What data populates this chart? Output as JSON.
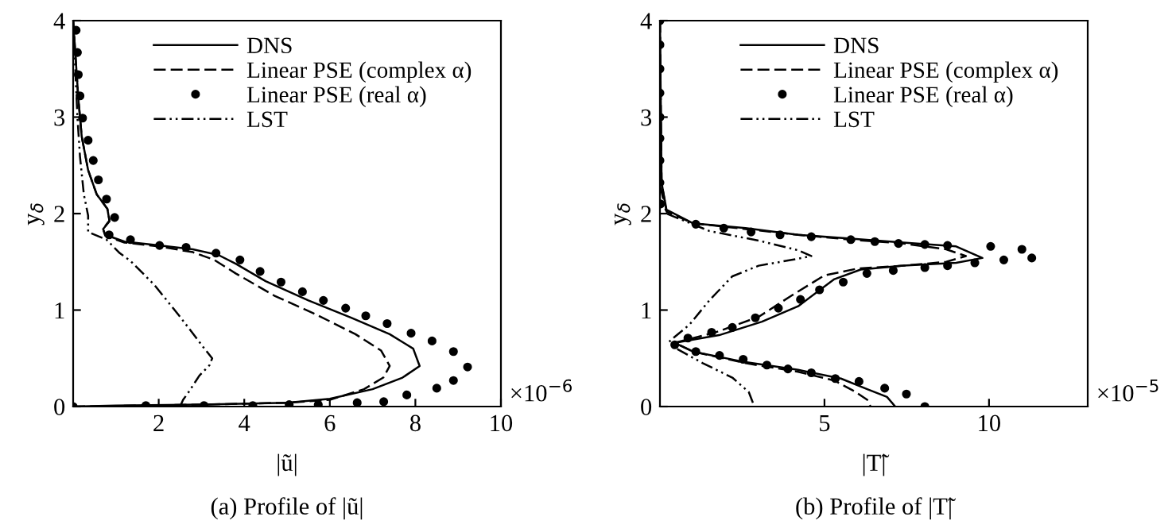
{
  "chart_data": [
    {
      "type": "line",
      "xlabel": "|ũ|",
      "ylabel": "y$_{δ}$",
      "xlim": [
        0,
        10
      ],
      "ylim": [
        0,
        4
      ],
      "xticks": [
        2,
        4,
        6,
        8,
        10
      ],
      "yticks": [
        0,
        1,
        2,
        3,
        4
      ],
      "legend": "top right",
      "grid": false,
      "annotations": [
        "×10$^{−6}$",
        "(a) Profile of |ũ|"
      ],
      "series": [
        {
          "name": "DNS",
          "color": "#000000",
          "type": "line",
          "line_style": "solid",
          "marker": "none",
          "x": [
            0,
            1,
            3,
            5,
            6,
            7,
            7.7,
            8.1,
            7.95,
            7.4,
            6.5,
            5.5,
            4.5,
            3.8,
            3.4,
            2.8,
            2.0,
            1.2,
            0.75,
            0.7,
            0.85,
            0.8,
            0.55,
            0.35,
            0.2,
            0.12,
            0.06,
            0
          ],
          "values": [
            0,
            0.01,
            0.02,
            0.04,
            0.08,
            0.18,
            0.3,
            0.42,
            0.6,
            0.75,
            0.92,
            1.1,
            1.3,
            1.48,
            1.57,
            1.63,
            1.67,
            1.71,
            1.78,
            1.84,
            1.92,
            2.05,
            2.2,
            2.45,
            2.8,
            3.2,
            3.6,
            4
          ]
        },
        {
          "name": "Linear PSE (complex α)",
          "color": "#000000",
          "type": "line",
          "line_style": "dashed",
          "marker": "none",
          "x": [
            0,
            3,
            5,
            6,
            6.8,
            7.25,
            7.4,
            7.2,
            6.6,
            5.7,
            4.7,
            3.8,
            3.3,
            2.8,
            2.0,
            1.2,
            0.75,
            0.7,
            0.85,
            0.8,
            0.55,
            0.35,
            0.2,
            0.12,
            0.06,
            0
          ],
          "values": [
            0,
            0.02,
            0.04,
            0.07,
            0.18,
            0.3,
            0.42,
            0.58,
            0.75,
            0.95,
            1.15,
            1.38,
            1.52,
            1.6,
            1.66,
            1.7,
            1.77,
            1.84,
            1.93,
            2.05,
            2.2,
            2.45,
            2.8,
            3.2,
            3.6,
            4
          ]
        },
        {
          "name": "Linear PSE (real α)",
          "color": "#000000",
          "type": "scatter",
          "marker": "circle",
          "x": [
            0,
            1.7,
            3.06,
            4.2,
            5.05,
            5.73,
            6.64,
            7.26,
            7.8,
            8.5,
            8.89,
            9.22,
            8.89,
            8.39,
            7.9,
            7.34,
            6.84,
            6.37,
            5.85,
            5.36,
            4.86,
            4.37,
            3.9,
            3.34,
            2.64,
            2.02,
            1.34,
            0.84,
            0.97,
            0.78,
            0.59,
            0.47,
            0.35,
            0.22,
            0.16,
            0.12,
            0.1,
            0.07
          ],
          "values": [
            0,
            0.01,
            0.01,
            0.01,
            0.02,
            0.02,
            0.04,
            0.05,
            0.12,
            0.19,
            0.27,
            0.41,
            0.57,
            0.68,
            0.76,
            0.86,
            0.94,
            1.02,
            1.1,
            1.19,
            1.29,
            1.4,
            1.52,
            1.59,
            1.65,
            1.67,
            1.73,
            1.78,
            1.96,
            2.15,
            2.35,
            2.55,
            2.76,
            2.99,
            3.22,
            3.44,
            3.67,
            3.9
          ]
        },
        {
          "name": "LST",
          "color": "#000000",
          "type": "line",
          "line_style": "dashdot",
          "marker": "none",
          "x": [
            2.5,
            2.57,
            2.7,
            2.95,
            3.19,
            3.25,
            3.07,
            2.5,
            1.9,
            1.34,
            1.09,
            0.78,
            0.35,
            0.35,
            0.25,
            0.16,
            0.1,
            0.05,
            0
          ],
          "values": [
            0,
            0.07,
            0.15,
            0.32,
            0.43,
            0.5,
            0.6,
            0.93,
            1.26,
            1.51,
            1.59,
            1.73,
            1.81,
            1.98,
            2.2,
            2.59,
            3.0,
            3.5,
            4
          ]
        }
      ]
    },
    {
      "type": "line",
      "xlabel": "|T̃|",
      "ylabel": "y$_{δ}$",
      "xlim": [
        0,
        13
      ],
      "ylim": [
        0,
        4
      ],
      "xticks": [
        5,
        10
      ],
      "yticks": [
        0,
        1,
        2,
        3,
        4
      ],
      "legend": "top right",
      "grid": false,
      "annotations": [
        "×10$^{−5}$",
        "(b) Profile of |T̃|"
      ],
      "series": [
        {
          "name": "DNS",
          "color": "#000000",
          "type": "line",
          "line_style": "solid",
          "marker": "none",
          "x": [
            0,
            0.05,
            0.2,
            1.0,
            2.6,
            4.2,
            5.8,
            7.4,
            9.0,
            9.8,
            9.0,
            7.4,
            6.1,
            5.3,
            4.2,
            3.1,
            1.8,
            0.45,
            1.0,
            2.6,
            4.2,
            5.5,
            6.3,
            6.9,
            7.15
          ],
          "values": [
            4,
            2.32,
            2.04,
            1.9,
            1.85,
            1.78,
            1.74,
            1.7,
            1.66,
            1.54,
            1.49,
            1.46,
            1.42,
            1.32,
            1.04,
            0.88,
            0.74,
            0.66,
            0.57,
            0.46,
            0.38,
            0.29,
            0.18,
            0.1,
            0
          ]
        },
        {
          "name": "Linear PSE (complex α)",
          "color": "#000000",
          "type": "line",
          "line_style": "dashed",
          "marker": "none",
          "x": [
            0,
            0.05,
            0.2,
            1.0,
            2.6,
            4.2,
            5.8,
            7.4,
            8.7,
            9.3,
            8.7,
            7.4,
            6.0,
            5.0,
            4.0,
            3.0,
            1.7,
            0.45,
            1.0,
            2.6,
            4.2,
            5.3,
            5.9,
            6.3,
            6.4
          ],
          "values": [
            4,
            2.32,
            2.02,
            1.9,
            1.84,
            1.78,
            1.73,
            1.69,
            1.63,
            1.56,
            1.5,
            1.46,
            1.43,
            1.36,
            1.15,
            0.93,
            0.77,
            0.66,
            0.57,
            0.45,
            0.36,
            0.27,
            0.16,
            0.07,
            0
          ]
        },
        {
          "name": "Linear PSE (real α)",
          "color": "#000000",
          "type": "scatter",
          "marker": "circle",
          "x": [
            0,
            0,
            0,
            0,
            0,
            0,
            0,
            0,
            0.02,
            1.09,
            1.94,
            2.77,
            3.65,
            4.6,
            5.8,
            6.53,
            7.25,
            8.05,
            8.74,
            10.05,
            11.0,
            11.3,
            10.45,
            9.57,
            8.74,
            8.05,
            7.09,
            6.29,
            5.57,
            4.85,
            4.27,
            3.6,
            2.9,
            2.2,
            1.57,
            0.85,
            0.45,
            1.09,
            1.81,
            2.53,
            3.25,
            3.89,
            4.6,
            5.33,
            6.05,
            6.83,
            7.49,
            8.05
          ],
          "values": [
            4,
            3.75,
            3.5,
            3.25,
            3.0,
            2.78,
            2.55,
            2.32,
            2.1,
            1.89,
            1.85,
            1.81,
            1.78,
            1.76,
            1.73,
            1.71,
            1.69,
            1.68,
            1.67,
            1.66,
            1.63,
            1.54,
            1.52,
            1.49,
            1.46,
            1.44,
            1.41,
            1.38,
            1.29,
            1.21,
            1.11,
            1.02,
            0.92,
            0.82,
            0.77,
            0.71,
            0.64,
            0.57,
            0.53,
            0.49,
            0.43,
            0.39,
            0.35,
            0.29,
            0.26,
            0.19,
            0.13,
            0
          ]
        },
        {
          "name": "LST",
          "color": "#000000",
          "type": "line",
          "line_style": "dashdot",
          "marker": "none",
          "x": [
            0,
            0,
            0.2,
            1.5,
            3.0,
            4.2,
            4.6,
            4.0,
            3.0,
            2.2,
            1.5,
            0.9,
            0.3,
            0.5,
            1.3,
            2.2,
            2.7,
            2.87
          ],
          "values": [
            4,
            2.3,
            2.0,
            1.82,
            1.72,
            1.62,
            1.56,
            1.52,
            1.46,
            1.35,
            1.1,
            0.85,
            0.68,
            0.6,
            0.45,
            0.3,
            0.15,
            0
          ]
        }
      ]
    }
  ]
}
